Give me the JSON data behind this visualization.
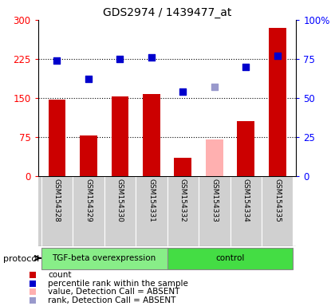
{
  "title": "GDS2974 / 1439477_at",
  "samples": [
    "GSM154328",
    "GSM154329",
    "GSM154330",
    "GSM154331",
    "GSM154332",
    "GSM154333",
    "GSM154334",
    "GSM154335"
  ],
  "bar_values": [
    147,
    78,
    153,
    157,
    35,
    70,
    105,
    285
  ],
  "bar_colors": [
    "#cc0000",
    "#cc0000",
    "#cc0000",
    "#cc0000",
    "#cc0000",
    "#ffb0b0",
    "#cc0000",
    "#cc0000"
  ],
  "rank_values": [
    74,
    62,
    75,
    76,
    54,
    57,
    70,
    77
  ],
  "rank_colors": [
    "#0000cc",
    "#0000cc",
    "#0000cc",
    "#0000cc",
    "#0000cc",
    "#9999cc",
    "#0000cc",
    "#0000cc"
  ],
  "left_ylim": [
    0,
    300
  ],
  "right_ylim": [
    0,
    100
  ],
  "left_yticks": [
    0,
    75,
    150,
    225,
    300
  ],
  "right_yticks": [
    0,
    25,
    50,
    75,
    100
  ],
  "right_yticklabels": [
    "0",
    "25",
    "50",
    "75",
    "100%"
  ],
  "left_yticklabels": [
    "0",
    "75",
    "150",
    "225",
    "300"
  ],
  "hgrid_vals": [
    75,
    150,
    225
  ],
  "group_tgf_label": "TGF-beta overexpression",
  "group_ctrl_label": "control",
  "group_tgf_color": "#88ee88",
  "group_ctrl_color": "#44dd44",
  "col_bg_color": "#d0d0d0",
  "protocol_label": "protocol",
  "legend_items": [
    {
      "label": "count",
      "color": "#cc0000"
    },
    {
      "label": "percentile rank within the sample",
      "color": "#0000cc"
    },
    {
      "label": "value, Detection Call = ABSENT",
      "color": "#ffb0b0"
    },
    {
      "label": "rank, Detection Call = ABSENT",
      "color": "#9999cc"
    }
  ]
}
